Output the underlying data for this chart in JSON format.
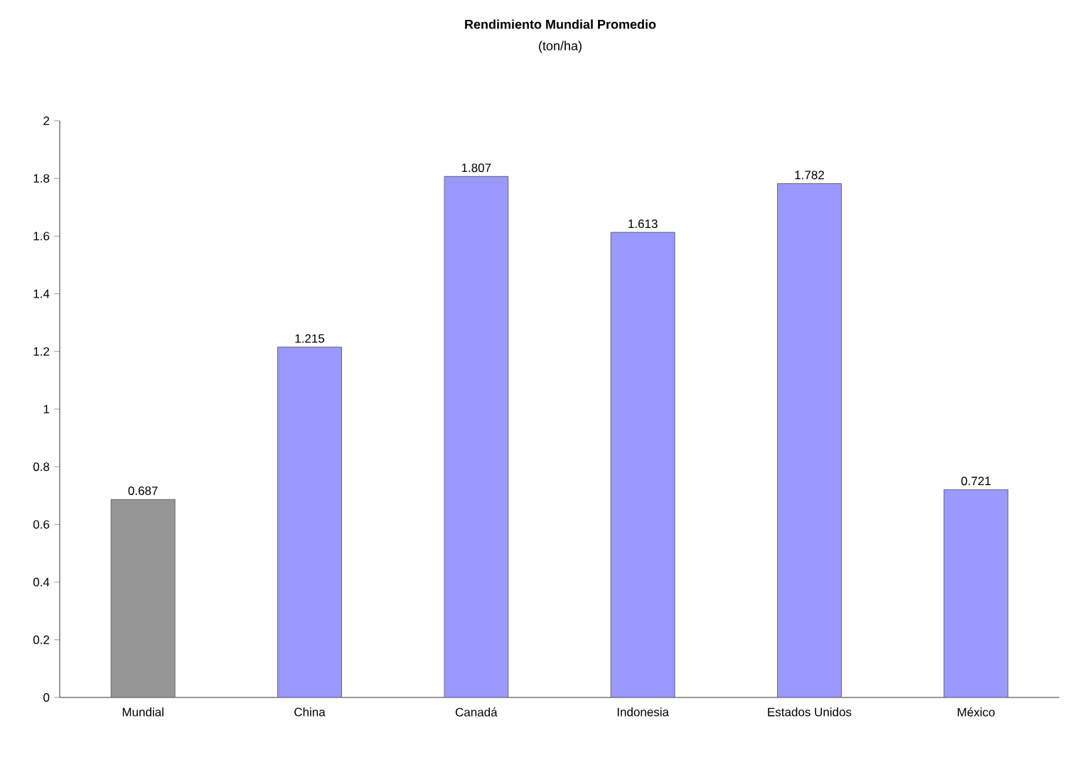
{
  "chart_data": {
    "type": "bar",
    "title": "Rendimiento Mundial Promedio",
    "subtitle": "(ton/ha)",
    "categories": [
      "Mundial",
      "China",
      "Canadá",
      "Indonesia",
      "Estados Unidos",
      "México"
    ],
    "values": [
      0.687,
      1.215,
      1.807,
      1.613,
      1.782,
      0.721
    ],
    "colors": [
      "#969696",
      "#9999ff",
      "#9999ff",
      "#9999ff",
      "#9999ff",
      "#9999ff"
    ],
    "ylim": [
      0,
      2
    ],
    "yticks": [
      0,
      0.2,
      0.4,
      0.6,
      0.8,
      1,
      1.2,
      1.4,
      1.6,
      1.8,
      2
    ],
    "grid": false,
    "data_labels": true
  }
}
